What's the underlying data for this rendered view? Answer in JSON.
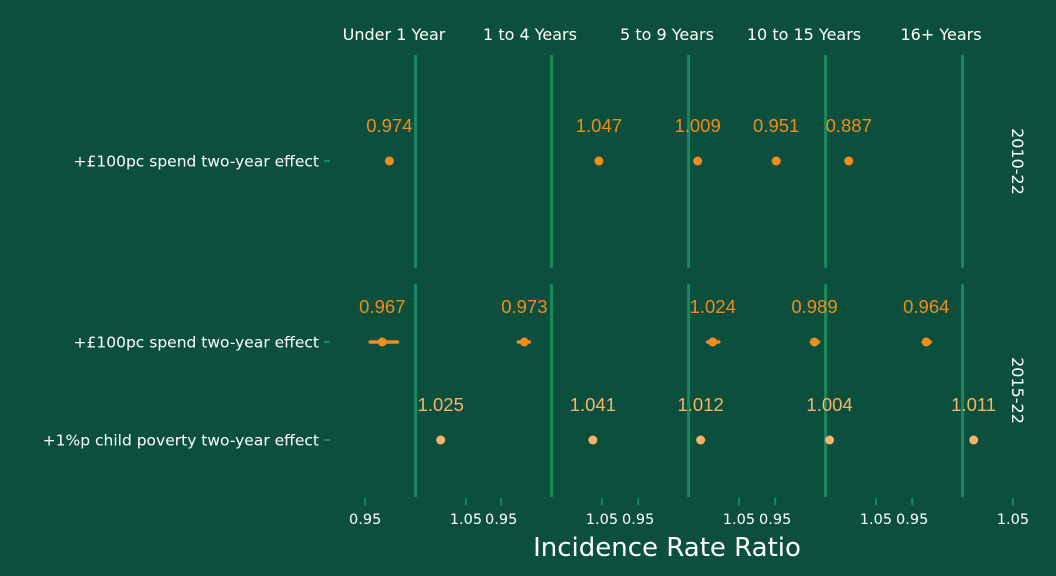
{
  "chart_data": {
    "type": "scatter",
    "subtype": "faceted-forest-plot",
    "xlabel": "Incidence Rate Ratio",
    "column_facets": [
      "Under 1 Year",
      "1 to 4 Years",
      "5 to 9 Years",
      "10 to 15 Years",
      "16+ Years"
    ],
    "xlim": [
      0.925,
      1.06
    ],
    "x_ticks": [
      0.95,
      1.05
    ],
    "x_tick_labels": [
      "0.95",
      "1.05"
    ],
    "reference_line": 1.0,
    "row_facets": [
      {
        "label": "2010-22",
        "rows": [
          {
            "label": "+£100pc spend two-year effect",
            "color": "#f28c1c",
            "values": [
              0.974,
              1.047,
              1.009,
              0.951,
              0.887
            ],
            "value_labels": [
              "0.974",
              "1.047",
              "1.009",
              "0.951",
              "0.887"
            ],
            "ci_low": [
              null,
              null,
              null,
              null,
              null
            ],
            "ci_high": [
              null,
              null,
              null,
              null,
              null
            ]
          }
        ]
      },
      {
        "label": "2015-22",
        "rows": [
          {
            "label": "+£100pc spend two-year effect",
            "color": "#f28c1c",
            "values": [
              0.967,
              0.973,
              1.024,
              0.989,
              0.964
            ],
            "value_labels": [
              "0.967",
              "0.973",
              "1.024",
              "0.989",
              "0.964"
            ],
            "ci_low": [
              0.955,
              0.967,
              1.019,
              0.986,
              0.961
            ],
            "ci_high": [
              0.982,
              0.978,
              1.03,
              0.993,
              0.968
            ]
          },
          {
            "label": "+1%p child poverty two-year effect",
            "color": "#f9b26a",
            "values": [
              1.025,
              1.041,
              1.012,
              1.004,
              1.011
            ],
            "value_labels": [
              "1.025",
              "1.041",
              "1.012",
              "1.004",
              "1.011"
            ],
            "ci_low": [
              null,
              null,
              null,
              null,
              null
            ],
            "ci_high": [
              null,
              null,
              null,
              null,
              null
            ]
          }
        ]
      }
    ]
  },
  "colors": {
    "background": "#0b4f3c",
    "reference_line": "#1a8a5c",
    "tick": "#1a8a5c",
    "text": "#ffffff"
  }
}
